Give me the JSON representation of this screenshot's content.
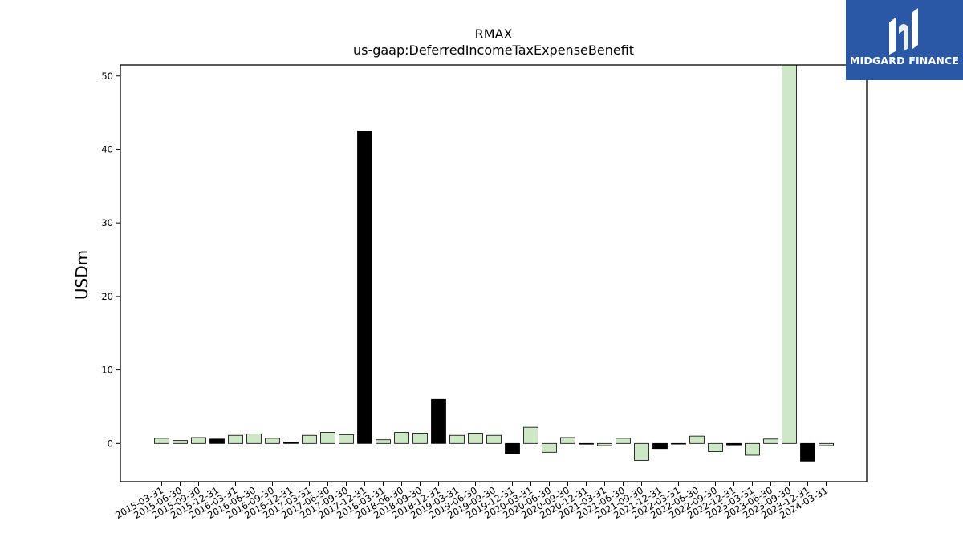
{
  "chart_data": {
    "type": "bar",
    "title": "RMAX",
    "subtitle": "us-gaap:DeferredIncomeTaxExpenseBenefit",
    "ylabel": "USDm",
    "xlabel": "",
    "ylim": [
      -5.2,
      51.5
    ],
    "yticks": [
      0,
      10,
      20,
      30,
      40,
      50
    ],
    "grid": false,
    "colors": {
      "positive": "#cce8c4",
      "negative": "#000000",
      "edge": "#000000"
    },
    "categories": [
      "2015-03-31",
      "2015-06-30",
      "2015-09-30",
      "2015-12-31",
      "2016-03-31",
      "2016-06-30",
      "2016-09-30",
      "2016-12-31",
      "2017-03-31",
      "2017-06-30",
      "2017-09-30",
      "2017-12-31",
      "2018-03-31",
      "2018-06-30",
      "2018-09-30",
      "2018-12-31",
      "2019-03-31",
      "2019-06-30",
      "2019-09-30",
      "2019-12-31",
      "2020-03-31",
      "2020-06-30",
      "2020-09-30",
      "2020-12-31",
      "2021-03-31",
      "2021-06-30",
      "2021-09-30",
      "2021-12-31",
      "2022-03-31",
      "2022-06-30",
      "2022-09-30",
      "2022-12-31",
      "2023-03-31",
      "2023-06-30",
      "2023-09-30",
      "2023-12-31",
      "2024-03-31"
    ],
    "values": [
      0.7,
      0.4,
      0.8,
      0.6,
      1.1,
      1.3,
      0.7,
      0.2,
      1.1,
      1.5,
      1.2,
      42.5,
      0.5,
      1.5,
      1.4,
      6.0,
      1.1,
      1.4,
      1.1,
      -1.4,
      2.2,
      -1.2,
      0.8,
      -0.1,
      -0.3,
      0.7,
      -2.3,
      -0.7,
      -0.05,
      1.0,
      -1.1,
      -0.2,
      -1.6,
      0.6,
      51.5,
      -2.4,
      -0.3
    ],
    "styles": [
      "pos",
      "pos",
      "pos",
      "neg",
      "pos",
      "pos",
      "pos",
      "neg",
      "pos",
      "pos",
      "pos",
      "neg",
      "pos",
      "pos",
      "pos",
      "neg",
      "pos",
      "pos",
      "pos",
      "neg",
      "pos",
      "pos",
      "pos",
      "neg",
      "pos",
      "pos",
      "pos",
      "neg",
      "pos",
      "pos",
      "pos",
      "neg",
      "pos",
      "pos",
      "pos",
      "neg",
      "pos"
    ]
  },
  "logo": {
    "text": "MIDGARD FINANCE",
    "icon": "midgard-logo-icon",
    "background": "#2b57a7"
  }
}
